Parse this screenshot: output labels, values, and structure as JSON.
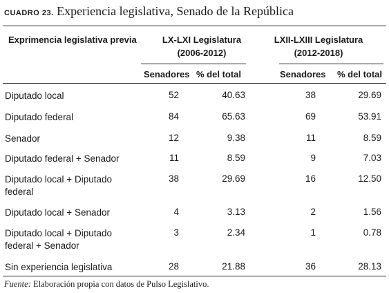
{
  "caption": {
    "label": "CUADRO 23.",
    "title": "Experiencia legislativa, Senado de la República"
  },
  "table": {
    "row_header": "Exprimencia legislativa previa",
    "groups": [
      {
        "name": "LX-LXI Legislatura",
        "period": "(2006-2012)"
      },
      {
        "name": "LXII-LXIII Legislatura",
        "period": "(2012-2018)"
      }
    ],
    "col_headers": [
      "Senadores",
      "% del total",
      "Senadores",
      "% del total"
    ],
    "rows": [
      {
        "label": "Diputado local",
        "values": [
          "52",
          "40.63",
          "38",
          "29.69"
        ]
      },
      {
        "label": "Diputado federal",
        "values": [
          "84",
          "65.63",
          "69",
          "53.91"
        ]
      },
      {
        "label": "Senador",
        "values": [
          "12",
          "9.38",
          "11",
          "8.59"
        ]
      },
      {
        "label": "Diputado federal + Senador",
        "values": [
          "11",
          "8.59",
          "9",
          "7.03"
        ]
      },
      {
        "label": "Diputado local + Diputado federal",
        "values": [
          "38",
          "29.69",
          "16",
          "12.50"
        ]
      },
      {
        "label": "Diputado local + Senador",
        "values": [
          "4",
          "3.13",
          "2",
          "1.56"
        ]
      },
      {
        "label": "Diputado local + Diputado federal + Senador",
        "values": [
          "3",
          "2.34",
          "1",
          "0.78"
        ]
      },
      {
        "label": "Sin experiencia legislativa",
        "values": [
          "28",
          "21.88",
          "36",
          "28.13"
        ]
      }
    ]
  },
  "note": {
    "lead": "Fuente:",
    "text": " Elaboración propia con datos de Pulso Legislativo."
  }
}
